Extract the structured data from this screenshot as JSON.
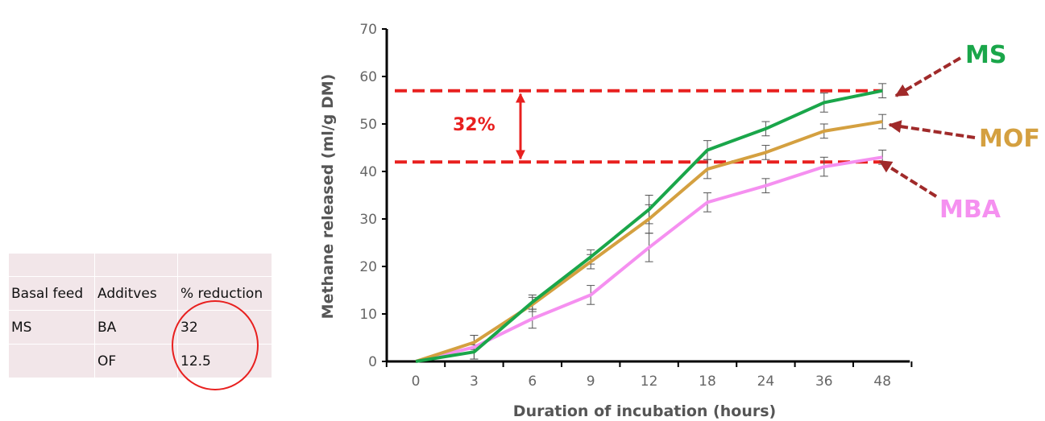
{
  "table": {
    "rows": [
      [
        "",
        "",
        ""
      ],
      [
        "Basal feed",
        "Additves",
        "% reduction"
      ],
      [
        "MS",
        "BA",
        "32"
      ],
      [
        "",
        "OF",
        "12.5"
      ]
    ]
  },
  "chart_data": {
    "type": "line",
    "xlabel": "Duration of incubation (hours)",
    "ylabel": "Methane released (ml/g DM)",
    "categories": [
      "0",
      "3",
      "6",
      "9",
      "12",
      "18",
      "24",
      "36",
      "48"
    ],
    "ylim": [
      0,
      70
    ],
    "yticks": [
      0,
      10,
      20,
      30,
      40,
      50,
      60,
      70
    ],
    "grid": false,
    "series": [
      {
        "name": "MS",
        "color": "#1aa64a",
        "values": [
          0,
          2,
          12.5,
          22,
          32,
          44.5,
          49,
          54.5,
          57
        ],
        "errors": [
          0,
          1.5,
          1.5,
          1.5,
          3,
          2,
          1.5,
          2,
          1.5
        ]
      },
      {
        "name": "MOF",
        "color": "#d4a040",
        "values": [
          0,
          4,
          12,
          21,
          30,
          40.5,
          44,
          48.5,
          50.5
        ],
        "errors": [
          0,
          1.5,
          1.5,
          1.5,
          3,
          2,
          1.5,
          1.5,
          1.5
        ]
      },
      {
        "name": "MBA",
        "color": "#f590f0",
        "values": [
          0,
          3,
          9,
          14,
          24,
          33.5,
          37,
          41,
          43
        ],
        "errors": [
          0,
          2.5,
          2,
          2,
          3,
          2,
          1.5,
          2,
          1.5
        ]
      }
    ],
    "reference_lines": [
      57,
      42
    ],
    "annotation": "32%",
    "arrow_color": "#a02a2a",
    "ref_color": "#e8201f",
    "errorbar_color": "#555555"
  }
}
